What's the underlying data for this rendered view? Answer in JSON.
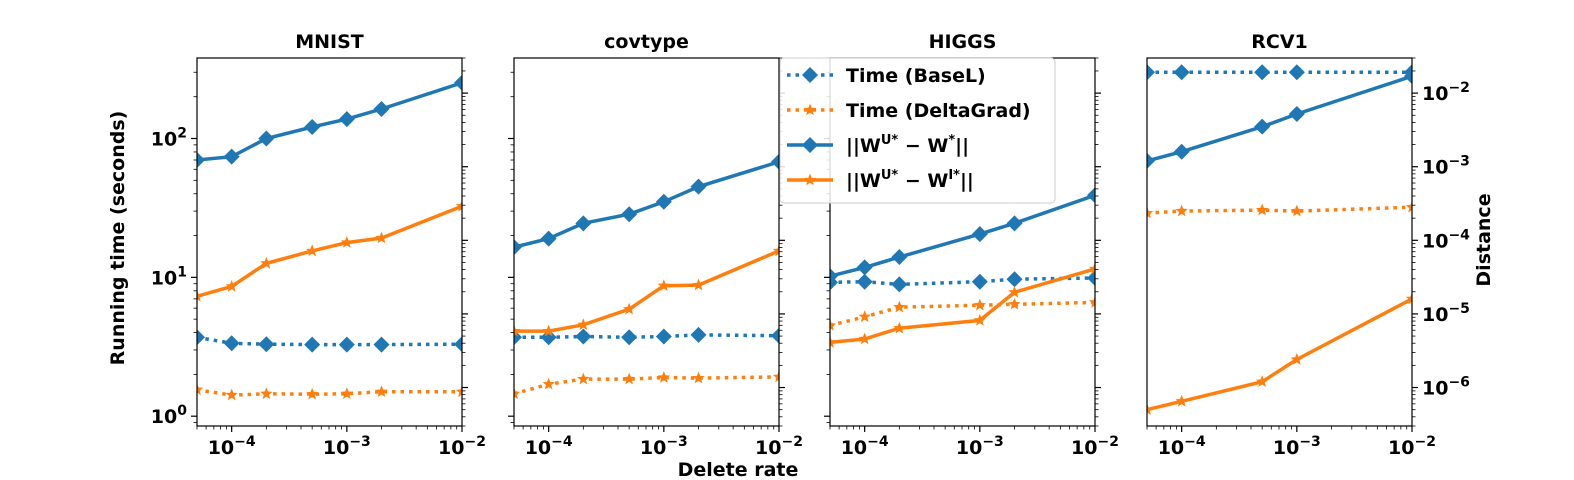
{
  "figure": {
    "y_axis_label": "Running time (seconds)",
    "x_axis_label": "Delete rate",
    "right_axis_label": "Distance"
  },
  "legend": {
    "location": "upper-right of second panel",
    "entries": [
      {
        "label": "Time (BaseL)",
        "color": "#1f77b4",
        "style": "dotted",
        "marker": "diamond"
      },
      {
        "label": "Time (DeltaGrad)",
        "color": "#ff7f0e",
        "style": "dotted",
        "marker": "star"
      },
      {
        "label": "||W^{U*} − W^{*}||",
        "color": "#1f77b4",
        "style": "solid",
        "marker": "diamond"
      },
      {
        "label": "||W^{U*} − W^{I*}||",
        "color": "#ff7f0e",
        "style": "solid",
        "marker": "star"
      }
    ]
  },
  "chart_data": [
    {
      "type": "line",
      "title": "MNIST",
      "xscale": "log",
      "xlim": [
        5e-05,
        0.01
      ],
      "xticks": [
        "10^-4",
        "10^-3",
        "10^-2"
      ],
      "time_axis": {
        "scale": "log",
        "lim": [
          0.85,
          380
        ],
        "ticks": [
          "10^0",
          "10^1",
          "10^2"
        ]
      },
      "series": [
        {
          "name": "Time (BaseL)",
          "axis": "time",
          "x": [
            5e-05,
            0.0001,
            0.0002,
            0.0005,
            0.001,
            0.002,
            0.01
          ],
          "y": [
            3.7,
            3.35,
            3.3,
            3.28,
            3.28,
            3.28,
            3.3
          ]
        },
        {
          "name": "Time (DeltaGrad)",
          "axis": "time",
          "x": [
            5e-05,
            0.0001,
            0.0002,
            0.0005,
            0.001,
            0.002,
            0.01
          ],
          "y": [
            1.55,
            1.42,
            1.45,
            1.44,
            1.45,
            1.5,
            1.5
          ]
        },
        {
          "name": "||W^{U*} − W^{*}||",
          "axis": "time",
          "x": [
            5e-05,
            0.0001,
            0.0002,
            0.0005,
            0.001,
            0.002,
            0.01
          ],
          "y": [
            70,
            74,
            100,
            121,
            138,
            163,
            252
          ]
        },
        {
          "name": "||W^{U*} − W^{I*}||",
          "axis": "time",
          "x": [
            5e-05,
            0.0001,
            0.0002,
            0.0005,
            0.001,
            0.002,
            0.01
          ],
          "y": [
            7.3,
            8.6,
            12.6,
            15.5,
            17.8,
            19.2,
            32.5
          ]
        }
      ]
    },
    {
      "type": "line",
      "title": "covtype",
      "xscale": "log",
      "xlim": [
        5e-05,
        0.01
      ],
      "xticks": [
        "10^-4",
        "10^-3",
        "10^-2"
      ],
      "series": [
        {
          "name": "Time (BaseL)",
          "axis": "time",
          "x": [
            5e-05,
            0.0001,
            0.0002,
            0.0005,
            0.001,
            0.002,
            0.01
          ],
          "y": [
            3.7,
            3.7,
            3.75,
            3.7,
            3.75,
            3.85,
            3.8
          ]
        },
        {
          "name": "Time (DeltaGrad)",
          "axis": "time",
          "x": [
            5e-05,
            0.0001,
            0.0002,
            0.0005,
            0.001,
            0.002,
            0.01
          ],
          "y": [
            1.45,
            1.7,
            1.85,
            1.85,
            1.9,
            1.88,
            1.92
          ]
        },
        {
          "name": "||W^{U*} − W^{*}||",
          "axis": "time",
          "x": [
            5e-05,
            0.0001,
            0.0002,
            0.0005,
            0.001,
            0.002,
            0.01
          ],
          "y": [
            16.5,
            19,
            24.5,
            28.5,
            35,
            45,
            68
          ]
        },
        {
          "name": "||W^{U*} − W^{I*}||",
          "axis": "time",
          "x": [
            5e-05,
            0.0001,
            0.0002,
            0.0005,
            0.001,
            0.002,
            0.01
          ],
          "y": [
            4.1,
            4.1,
            4.55,
            5.9,
            8.7,
            8.8,
            15.5
          ]
        }
      ]
    },
    {
      "type": "line",
      "title": "HIGGS",
      "xscale": "log",
      "xlim": [
        5e-05,
        0.01
      ],
      "xticks": [
        "10^-4",
        "10^-3",
        "10^-2"
      ],
      "series": [
        {
          "name": "Time (BaseL)",
          "axis": "time",
          "x": [
            5e-05,
            0.0001,
            0.0002,
            0.001,
            0.002,
            0.01
          ],
          "y": [
            9.2,
            9.3,
            8.9,
            9.3,
            9.7,
            9.9
          ]
        },
        {
          "name": "Time (DeltaGrad)",
          "axis": "time",
          "x": [
            5e-05,
            0.0001,
            0.0002,
            0.001,
            0.002,
            0.01
          ],
          "y": [
            4.5,
            5.2,
            6.1,
            6.3,
            6.4,
            6.6
          ]
        },
        {
          "name": "||W^{U*} − W^{*}||",
          "axis": "time",
          "x": [
            5e-05,
            0.0001,
            0.0002,
            0.001,
            0.002,
            0.01
          ],
          "y": [
            10.2,
            11.8,
            14,
            20.5,
            24.5,
            39
          ]
        },
        {
          "name": "||W^{U*} − W^{I*}||",
          "axis": "time",
          "x": [
            5e-05,
            0.0001,
            0.0002,
            0.001,
            0.002,
            0.01
          ],
          "y": [
            3.4,
            3.6,
            4.3,
            4.9,
            7.8,
            11.5
          ]
        }
      ]
    },
    {
      "type": "line",
      "title": "RCV1",
      "xscale": "log",
      "xlim": [
        5e-05,
        0.01
      ],
      "xticks": [
        "10^-4",
        "10^-3",
        "10^-2"
      ],
      "distance_axis": {
        "scale": "log",
        "lim": [
          3e-07,
          0.03
        ],
        "ticks": [
          "10^-6",
          "10^-5",
          "10^-4",
          "10^-3",
          "10^-2"
        ]
      },
      "series": [
        {
          "name": "Time (BaseL)",
          "axis": "time",
          "x": [
            5e-05,
            0.0001,
            0.0005,
            0.001,
            0.01
          ],
          "y": [
            300,
            300,
            300,
            300,
            300
          ]
        },
        {
          "name": "Time (DeltaGrad)",
          "axis": "time",
          "x": [
            5e-05,
            0.0001,
            0.0005,
            0.001,
            0.01
          ],
          "y": [
            29,
            30,
            30.5,
            30,
            32
          ]
        },
        {
          "name": "||W^{U*} − W^{*}||",
          "axis": "distance",
          "x": [
            5e-05,
            0.0001,
            0.0005,
            0.001,
            0.01
          ],
          "y": [
            0.0012,
            0.0016,
            0.0035,
            0.0052,
            0.017
          ]
        },
        {
          "name": "||W^{U*} − W^{I*}||",
          "axis": "distance",
          "x": [
            5e-05,
            0.0001,
            0.0005,
            0.001,
            0.01
          ],
          "y": [
            5e-07,
            6.5e-07,
            1.2e-06,
            2.4e-06,
            1.6e-05
          ]
        }
      ]
    }
  ]
}
